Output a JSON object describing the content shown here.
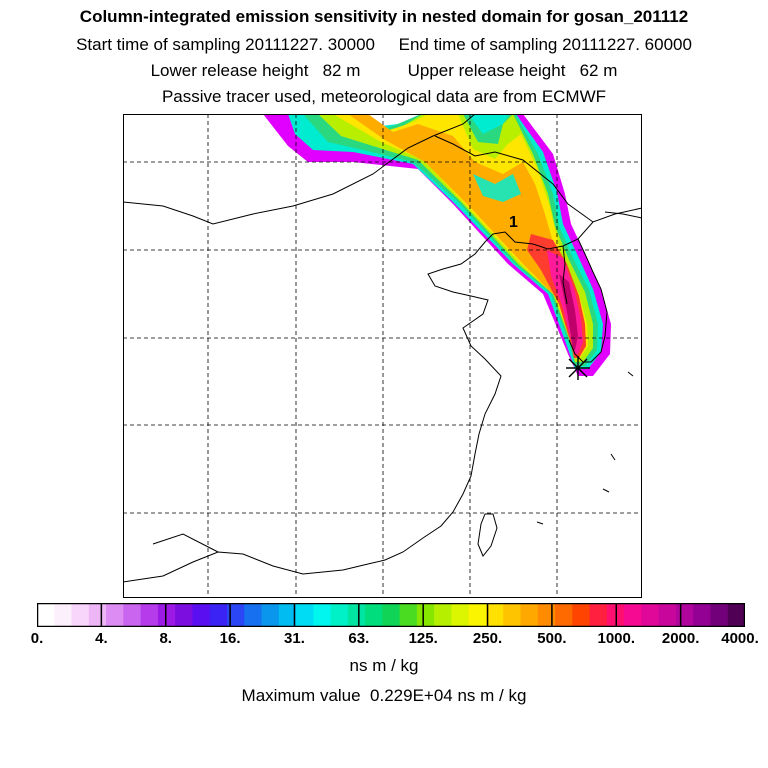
{
  "header": {
    "title": "Column-integrated emission sensitivity in nested domain for gosan_201112",
    "sampling": "Start time of sampling 20111227. 30000     End time of sampling 20111227. 60000",
    "release": "Lower release height   82 m          Upper release height   62 m",
    "source": "Passive tracer used, meteorological data are from ECMWF"
  },
  "map": {
    "point_label": "1",
    "site_marker": "star-marker",
    "plume_colors_inner_to_outer": [
      "#c0006a",
      "#ff1a9a",
      "#ff3d2e",
      "#ffaa00",
      "#ffe600",
      "#b8f000",
      "#22e68a",
      "#00f0c8",
      "#dd00ff"
    ]
  },
  "legend": {
    "colors": [
      "#ffffff",
      "#fdf0fd",
      "#f8d6fb",
      "#efb6f7",
      "#dc8cf2",
      "#c965ef",
      "#b63ceb",
      "#9d19e6",
      "#7d0ee0",
      "#5a0ff0",
      "#3b22f5",
      "#2a46f5",
      "#1670f0",
      "#0a96ec",
      "#00bcf0",
      "#00dcf3",
      "#00f6ee",
      "#00f0c8",
      "#00e6a2",
      "#00dd7c",
      "#10d455",
      "#4adc20",
      "#86e600",
      "#b6ef00",
      "#dcf500",
      "#fbf600",
      "#ffe000",
      "#ffc400",
      "#ffa800",
      "#ff8c00",
      "#ff6a00",
      "#ff4400",
      "#ff2040",
      "#ff1070",
      "#f70a92",
      "#e00898",
      "#c8069c",
      "#b0059c",
      "#920094",
      "#72007a",
      "#500055"
    ],
    "ticks": [
      "0.",
      "4.",
      "8.",
      "16.",
      "31.",
      "63.",
      "125.",
      "250.",
      "500.",
      "1000.",
      "2000.",
      "4000."
    ],
    "units": "ns m / kg",
    "max_text": "Maximum value  0.229E+04 ns m / kg"
  }
}
